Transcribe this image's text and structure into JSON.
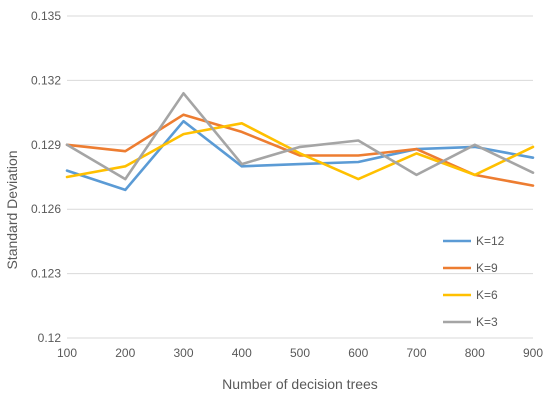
{
  "chart_data": {
    "type": "line",
    "title": "",
    "xlabel": "Number of decision trees",
    "ylabel": "Standard Deviation",
    "x": [
      100,
      200,
      300,
      400,
      500,
      600,
      700,
      800,
      900
    ],
    "xlim": [
      100,
      900
    ],
    "ylim": [
      0.12,
      0.135
    ],
    "yticks": [
      "0.12",
      "0.123",
      "0.126",
      "0.129",
      "0.132",
      "0.135"
    ],
    "xticks": [
      "100",
      "200",
      "300",
      "400",
      "500",
      "600",
      "700",
      "800",
      "900"
    ],
    "grid": "horizontal",
    "legend_position": "bottom-right",
    "series": [
      {
        "name": "K=12",
        "color": "#5b9bd5",
        "values": [
          0.1278,
          0.1269,
          0.1301,
          0.128,
          0.1281,
          0.1282,
          0.1288,
          0.1289,
          0.1284
        ]
      },
      {
        "name": "K=9",
        "color": "#ed7d31",
        "values": [
          0.129,
          0.1287,
          0.1304,
          0.1296,
          0.1285,
          0.1285,
          0.1288,
          0.1276,
          0.1271
        ]
      },
      {
        "name": "K=6",
        "color": "#ffc000",
        "values": [
          0.1275,
          0.128,
          0.1295,
          0.13,
          0.1286,
          0.1274,
          0.1286,
          0.1276,
          0.1289
        ]
      },
      {
        "name": "K=3",
        "color": "#a5a5a5",
        "values": [
          0.129,
          0.1274,
          0.1314,
          0.1281,
          0.1289,
          0.1292,
          0.1276,
          0.129,
          0.1277
        ]
      }
    ]
  }
}
